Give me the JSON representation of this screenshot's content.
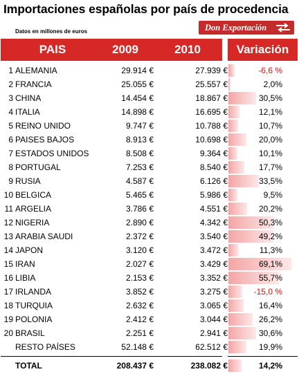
{
  "title": "Importaciones españolas por país de procedencia",
  "subtitle": "Datos en millones de euros",
  "logo": {
    "text": "Don Exportación",
    "icon": "double-arrow-icon"
  },
  "headers": {
    "country": "PAIS",
    "y2009": "2009",
    "y2010": "2010",
    "variation": "Variación"
  },
  "colors": {
    "header": "#d72828",
    "bar": "#f4a5a5",
    "negative": "#e01010"
  },
  "rows": [
    {
      "num": "1",
      "country": "ALEMANIA",
      "v2009": "29.914 €",
      "v2010": "27.939 €",
      "variation": "-6,6 %",
      "change": -6.6
    },
    {
      "num": "2",
      "country": "FRANCIA",
      "v2009": "25.055 €",
      "v2010": "25.557 €",
      "variation": "2,0%",
      "change": 2.0
    },
    {
      "num": "3",
      "country": "CHINA",
      "v2009": "14.454 €",
      "v2010": "18.867 €",
      "variation": "30,5%",
      "change": 30.5
    },
    {
      "num": "4",
      "country": "ITALIA",
      "v2009": "14.898 €",
      "v2010": "16.695 €",
      "variation": "12,1%",
      "change": 12.1
    },
    {
      "num": "5",
      "country": "REINO UNIDO",
      "v2009": "9.747 €",
      "v2010": "10.788 €",
      "variation": "10,7%",
      "change": 10.7
    },
    {
      "num": "6",
      "country": "PAISES BAJOS",
      "v2009": "8.913 €",
      "v2010": "10.698 €",
      "variation": "20,0%",
      "change": 20.0
    },
    {
      "num": "7",
      "country": "ESTADOS UNIDOS",
      "v2009": "8.508 €",
      "v2010": "9.364 €",
      "variation": "10,1%",
      "change": 10.1
    },
    {
      "num": "8",
      "country": "PORTUGAL",
      "v2009": "7.253 €",
      "v2010": "8.540 €",
      "variation": "17,7%",
      "change": 17.7
    },
    {
      "num": "9",
      "country": "RUSIA",
      "v2009": "4.587 €",
      "v2010": "6.126 €",
      "variation": "33,5%",
      "change": 33.5
    },
    {
      "num": "10",
      "country": "BELGICA",
      "v2009": "5.465 €",
      "v2010": "5.986 €",
      "variation": "9,5%",
      "change": 9.5
    },
    {
      "num": "11",
      "country": "ARGELIA",
      "v2009": "3.786 €",
      "v2010": "4.551 €",
      "variation": "20,2%",
      "change": 20.2
    },
    {
      "num": "12",
      "country": "NIGERIA",
      "v2009": "2.890 €",
      "v2010": "4.342 €",
      "variation": "50,3%",
      "change": 50.3
    },
    {
      "num": "13",
      "country": "ARABIA SAUDI",
      "v2009": "2.372 €",
      "v2010": "3.540 €",
      "variation": "49,2%",
      "change": 49.2
    },
    {
      "num": "14",
      "country": "JAPON",
      "v2009": "3.120 €",
      "v2010": "3.472 €",
      "variation": "11,3%",
      "change": 11.3
    },
    {
      "num": "15",
      "country": "IRAN",
      "v2009": "2.027 €",
      "v2010": "3.429 €",
      "variation": "69,1%",
      "change": 69.1
    },
    {
      "num": "16",
      "country": "LIBIA",
      "v2009": "2.153 €",
      "v2010": "3.352 €",
      "variation": "55,7%",
      "change": 55.7
    },
    {
      "num": "17",
      "country": "IRLANDA",
      "v2009": "3.852 €",
      "v2010": "3.275 €",
      "variation": "-15,0 %",
      "change": -15.0
    },
    {
      "num": "18",
      "country": "TURQUIA",
      "v2009": "2.632 €",
      "v2010": "3.065 €",
      "variation": "16,4%",
      "change": 16.4
    },
    {
      "num": "19",
      "country": "POLONIA",
      "v2009": "2.412 €",
      "v2010": "3.044 €",
      "variation": "26,2%",
      "change": 26.2
    },
    {
      "num": "20",
      "country": "BRASIL",
      "v2009": "2.251 €",
      "v2010": "2.941 €",
      "variation": "30,6%",
      "change": 30.6
    },
    {
      "num": "",
      "country": "RESTO PAÍSES",
      "v2009": "52.148 €",
      "v2010": "62.512 €",
      "variation": "19,9%",
      "change": 19.9
    }
  ],
  "total": {
    "country": "TOTAL",
    "v2009": "208.437 €",
    "v2010": "238.082 €",
    "variation": "14,2%",
    "change": 14.2
  }
}
